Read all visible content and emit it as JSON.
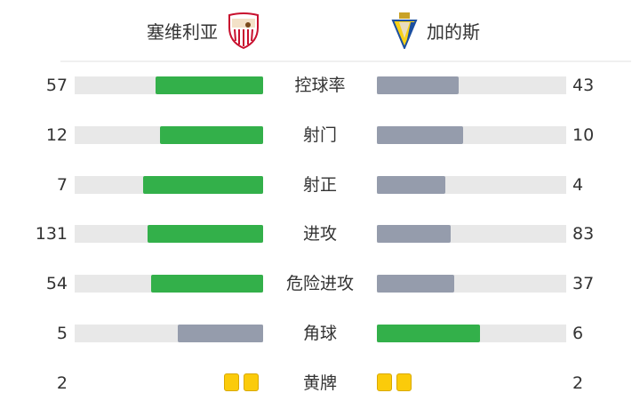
{
  "home": {
    "name": "塞维利亚",
    "logo": "sevilla-crest-icon"
  },
  "away": {
    "name": "加的斯",
    "logo": "cadiz-crest-icon"
  },
  "colors": {
    "leader": "#33b04a",
    "trailer": "#959cac",
    "track": "#e8e8e8",
    "card": "#fbcb0a"
  },
  "stats": [
    {
      "label": "控球率",
      "home": 57,
      "away": 43
    },
    {
      "label": "射门",
      "home": 12,
      "away": 10
    },
    {
      "label": "射正",
      "home": 7,
      "away": 4
    },
    {
      "label": "进攻",
      "home": 131,
      "away": 83
    },
    {
      "label": "危险进攻",
      "home": 54,
      "away": 37
    },
    {
      "label": "角球",
      "home": 5,
      "away": 6
    }
  ],
  "yellow_cards": {
    "label": "黄牌",
    "home": 2,
    "away": 2
  }
}
